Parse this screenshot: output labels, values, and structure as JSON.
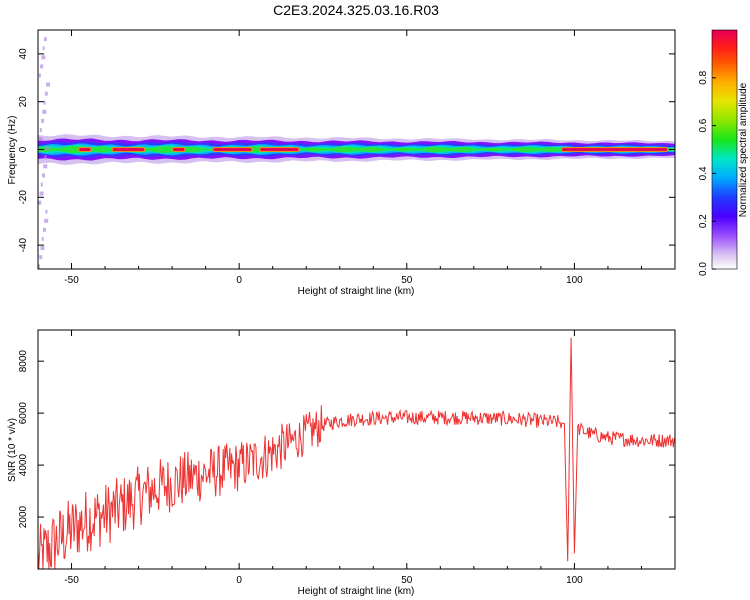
{
  "title": "C2E3.2024.325.03.16.R03",
  "chart_data": [
    {
      "type": "heatmap",
      "title": "C2E3.2024.325.03.16.R03",
      "xlabel": "Height of straight line (km)",
      "ylabel": "Frequency (Hz)",
      "xlim": [
        -60,
        130
      ],
      "ylim": [
        -50,
        50
      ],
      "x_ticks": [
        -50,
        0,
        50,
        100
      ],
      "y_ticks": [
        -40,
        -20,
        0,
        20,
        40
      ],
      "colorbar": {
        "label": "Normalized spectral amplitude",
        "range": [
          0.0,
          1.0
        ],
        "ticks": [
          "0.0",
          "0.2",
          "0.4",
          "0.6",
          "0.8"
        ],
        "colormap": [
          "#ffffff",
          "#b58ae6",
          "#7a00ff",
          "#2a3cff",
          "#00bfff",
          "#00e6b3",
          "#2ee62e",
          "#a6e600",
          "#ffd700",
          "#ff8c00",
          "#ff3000",
          "#e0005a"
        ]
      },
      "ridge": {
        "center_frequency_hz": 0,
        "intense_segments_km": [
          [
            -48,
            -44
          ],
          [
            -38,
            -28
          ],
          [
            -20,
            -16
          ],
          [
            -8,
            4
          ],
          [
            6,
            18
          ],
          [
            96,
            128
          ]
        ]
      }
    },
    {
      "type": "line",
      "xlabel": "Height of straight line (km)",
      "ylabel": "SNR (10 * v/v)",
      "xlim": [
        -60,
        130
      ],
      "ylim": [
        0,
        9200
      ],
      "x_ticks": [
        -50,
        0,
        50,
        100
      ],
      "y_ticks": [
        2000,
        4000,
        6000,
        8000
      ],
      "color": "#ee3333",
      "x": [
        -60,
        -55,
        -50,
        -45,
        -40,
        -35,
        -30,
        -25,
        -20,
        -15,
        -10,
        -5,
        0,
        5,
        10,
        15,
        20,
        25,
        30,
        35,
        40,
        45,
        50,
        55,
        60,
        65,
        70,
        75,
        80,
        85,
        90,
        95,
        97,
        98,
        99,
        100,
        101,
        105,
        110,
        115,
        120,
        125,
        130
      ],
      "y": [
        300,
        1000,
        1500,
        1900,
        2100,
        2400,
        2800,
        3100,
        3300,
        3500,
        3650,
        3800,
        3950,
        4200,
        4500,
        4850,
        5200,
        5550,
        5700,
        5780,
        5800,
        5820,
        5830,
        5830,
        5830,
        5830,
        5820,
        5800,
        5780,
        5750,
        5700,
        5650,
        5600,
        300,
        8900,
        600,
        5400,
        5200,
        5050,
        5000,
        4950,
        4950,
        4950
      ]
    }
  ]
}
